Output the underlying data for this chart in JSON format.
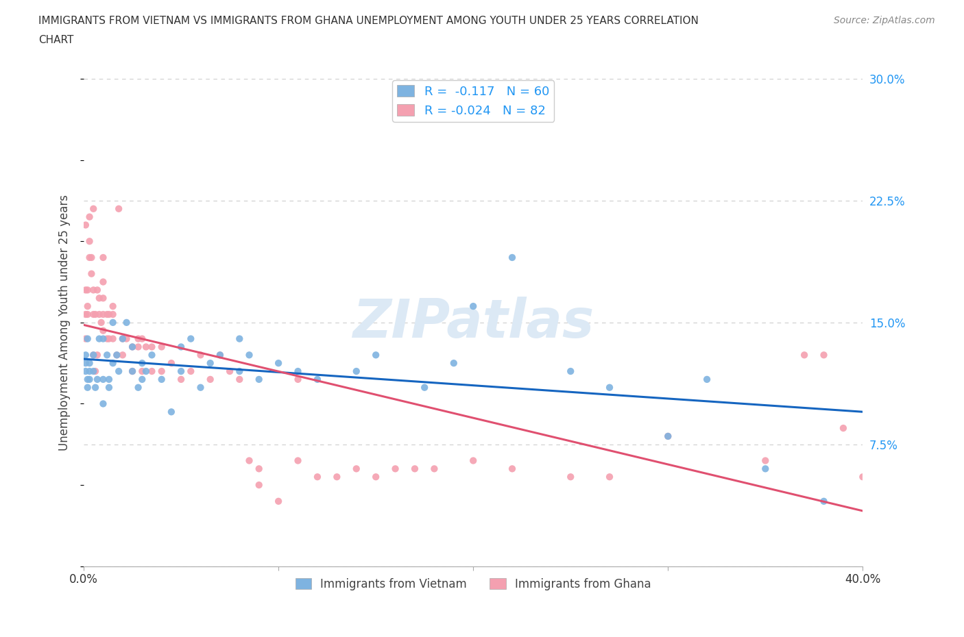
{
  "title_line1": "IMMIGRANTS FROM VIETNAM VS IMMIGRANTS FROM GHANA UNEMPLOYMENT AMONG YOUTH UNDER 25 YEARS CORRELATION",
  "title_line2": "CHART",
  "source": "Source: ZipAtlas.com",
  "ylabel": "Unemployment Among Youth under 25 years",
  "watermark": "ZIPatlas",
  "xlim": [
    0.0,
    0.4
  ],
  "ylim": [
    0.0,
    0.3
  ],
  "xticks": [
    0.0,
    0.1,
    0.2,
    0.3,
    0.4
  ],
  "yticks": [
    0.0,
    0.075,
    0.15,
    0.225,
    0.3
  ],
  "vietnam_R": -0.117,
  "vietnam_N": 60,
  "ghana_R": -0.024,
  "ghana_N": 82,
  "vietnam_color": "#7EB3E0",
  "ghana_color": "#F4A0B0",
  "vietnam_line_color": "#1565C0",
  "ghana_line_color": "#E05070",
  "tick_color": "#2196F3",
  "vietnam_x": [
    0.001,
    0.001,
    0.001,
    0.002,
    0.002,
    0.002,
    0.003,
    0.003,
    0.003,
    0.005,
    0.005,
    0.006,
    0.007,
    0.008,
    0.01,
    0.01,
    0.01,
    0.012,
    0.013,
    0.013,
    0.015,
    0.015,
    0.017,
    0.018,
    0.02,
    0.022,
    0.025,
    0.025,
    0.028,
    0.03,
    0.03,
    0.032,
    0.035,
    0.04,
    0.045,
    0.05,
    0.05,
    0.055,
    0.06,
    0.065,
    0.07,
    0.08,
    0.08,
    0.085,
    0.09,
    0.1,
    0.11,
    0.12,
    0.14,
    0.15,
    0.175,
    0.19,
    0.2,
    0.22,
    0.25,
    0.27,
    0.3,
    0.32,
    0.35,
    0.38
  ],
  "vietnam_y": [
    0.12,
    0.125,
    0.13,
    0.11,
    0.115,
    0.14,
    0.12,
    0.125,
    0.115,
    0.12,
    0.13,
    0.11,
    0.115,
    0.14,
    0.1,
    0.115,
    0.14,
    0.13,
    0.115,
    0.11,
    0.125,
    0.15,
    0.13,
    0.12,
    0.14,
    0.15,
    0.135,
    0.12,
    0.11,
    0.115,
    0.125,
    0.12,
    0.13,
    0.115,
    0.095,
    0.12,
    0.135,
    0.14,
    0.11,
    0.125,
    0.13,
    0.12,
    0.14,
    0.13,
    0.115,
    0.125,
    0.12,
    0.115,
    0.12,
    0.13,
    0.11,
    0.125,
    0.16,
    0.19,
    0.12,
    0.11,
    0.08,
    0.115,
    0.06,
    0.04
  ],
  "ghana_x": [
    0.001,
    0.001,
    0.001,
    0.001,
    0.002,
    0.002,
    0.002,
    0.003,
    0.003,
    0.003,
    0.004,
    0.004,
    0.005,
    0.005,
    0.005,
    0.005,
    0.006,
    0.006,
    0.007,
    0.007,
    0.008,
    0.008,
    0.009,
    0.01,
    0.01,
    0.01,
    0.01,
    0.01,
    0.012,
    0.012,
    0.013,
    0.013,
    0.015,
    0.015,
    0.015,
    0.017,
    0.018,
    0.02,
    0.02,
    0.022,
    0.025,
    0.025,
    0.028,
    0.028,
    0.03,
    0.03,
    0.032,
    0.035,
    0.035,
    0.04,
    0.04,
    0.045,
    0.05,
    0.055,
    0.06,
    0.065,
    0.07,
    0.075,
    0.08,
    0.085,
    0.09,
    0.09,
    0.1,
    0.11,
    0.11,
    0.12,
    0.13,
    0.14,
    0.15,
    0.16,
    0.17,
    0.18,
    0.2,
    0.22,
    0.25,
    0.27,
    0.3,
    0.35,
    0.37,
    0.38,
    0.39,
    0.4
  ],
  "ghana_y": [
    0.14,
    0.155,
    0.17,
    0.21,
    0.155,
    0.16,
    0.17,
    0.19,
    0.2,
    0.215,
    0.18,
    0.19,
    0.13,
    0.155,
    0.17,
    0.22,
    0.12,
    0.155,
    0.13,
    0.17,
    0.155,
    0.165,
    0.15,
    0.145,
    0.155,
    0.165,
    0.175,
    0.19,
    0.14,
    0.155,
    0.14,
    0.155,
    0.14,
    0.155,
    0.16,
    0.13,
    0.22,
    0.13,
    0.14,
    0.14,
    0.12,
    0.135,
    0.135,
    0.14,
    0.12,
    0.14,
    0.135,
    0.12,
    0.135,
    0.12,
    0.135,
    0.125,
    0.115,
    0.12,
    0.13,
    0.115,
    0.13,
    0.12,
    0.115,
    0.065,
    0.05,
    0.06,
    0.04,
    0.115,
    0.065,
    0.055,
    0.055,
    0.06,
    0.055,
    0.06,
    0.06,
    0.06,
    0.065,
    0.06,
    0.055,
    0.055,
    0.08,
    0.065,
    0.13,
    0.13,
    0.085,
    0.055
  ]
}
